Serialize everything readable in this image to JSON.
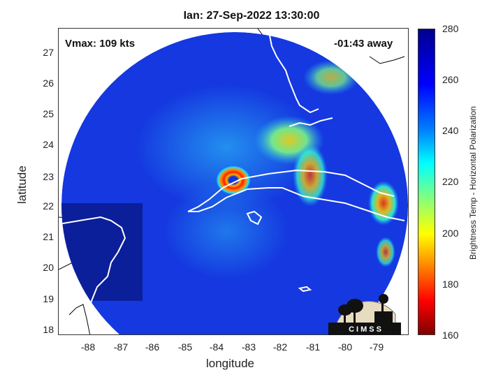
{
  "title": "Ian: 27-Sep-2022 13:30:00",
  "vmax": "Vmax: 109 kts",
  "time_away": "-01:43 away",
  "xlabel": "longitude",
  "ylabel": "latitude",
  "colorbar_label": "Brightness Temp - Horizontal Polarization",
  "logo_text": "CIMSS",
  "x_ticks": [
    "-88",
    "-87",
    "-86",
    "-85",
    "-84",
    "-83",
    "-82",
    "-81",
    "-80",
    "-79"
  ],
  "y_ticks": [
    "27",
    "26",
    "25",
    "24",
    "23",
    "22",
    "21",
    "20",
    "19",
    "18"
  ],
  "colorbar_ticks": [
    "280",
    "260",
    "240",
    "220",
    "200",
    "180",
    "160"
  ],
  "colorbar_range": [
    160,
    280
  ],
  "map_extent": {
    "lon": [
      -88.9,
      -78.1
    ],
    "lat": [
      17.8,
      27.8
    ]
  },
  "colors": {
    "eyewall": "#ff2000",
    "background_tb": "#1030e0",
    "coastline": "#ffffff",
    "land_outline": "#000000"
  }
}
